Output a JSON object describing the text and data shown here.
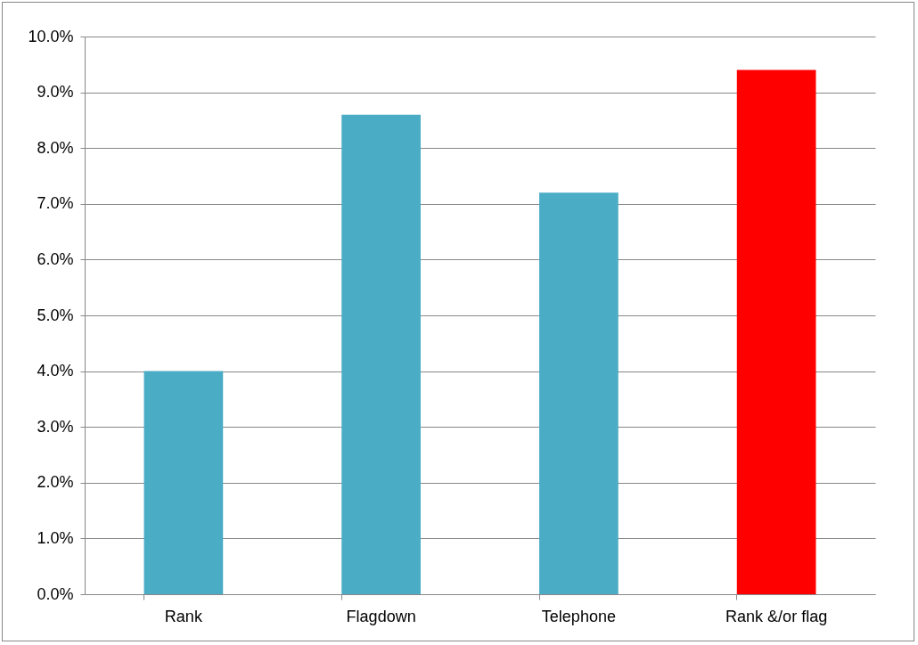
{
  "chart_data": {
    "type": "bar",
    "categories": [
      "Rank",
      "Flagdown",
      "Telephone",
      "Rank &/or flag"
    ],
    "values": [
      4.0,
      8.6,
      7.2,
      9.4
    ],
    "colors": [
      "#4bacc6",
      "#4bacc6",
      "#4bacc6",
      "#ff0000"
    ],
    "ylim": [
      0,
      10
    ],
    "yticks": [
      {
        "value": 0,
        "label": "0.0%"
      },
      {
        "value": 1,
        "label": "1.0%"
      },
      {
        "value": 2,
        "label": "2.0%"
      },
      {
        "value": 3,
        "label": "3.0%"
      },
      {
        "value": 4,
        "label": "4.0%"
      },
      {
        "value": 5,
        "label": "5.0%"
      },
      {
        "value": 6,
        "label": "6.0%"
      },
      {
        "value": 7,
        "label": "7.0%"
      },
      {
        "value": 8,
        "label": "8.0%"
      },
      {
        "value": 9,
        "label": "9.0%"
      },
      {
        "value": 10,
        "label": "10.0%"
      }
    ],
    "grid": "y"
  }
}
